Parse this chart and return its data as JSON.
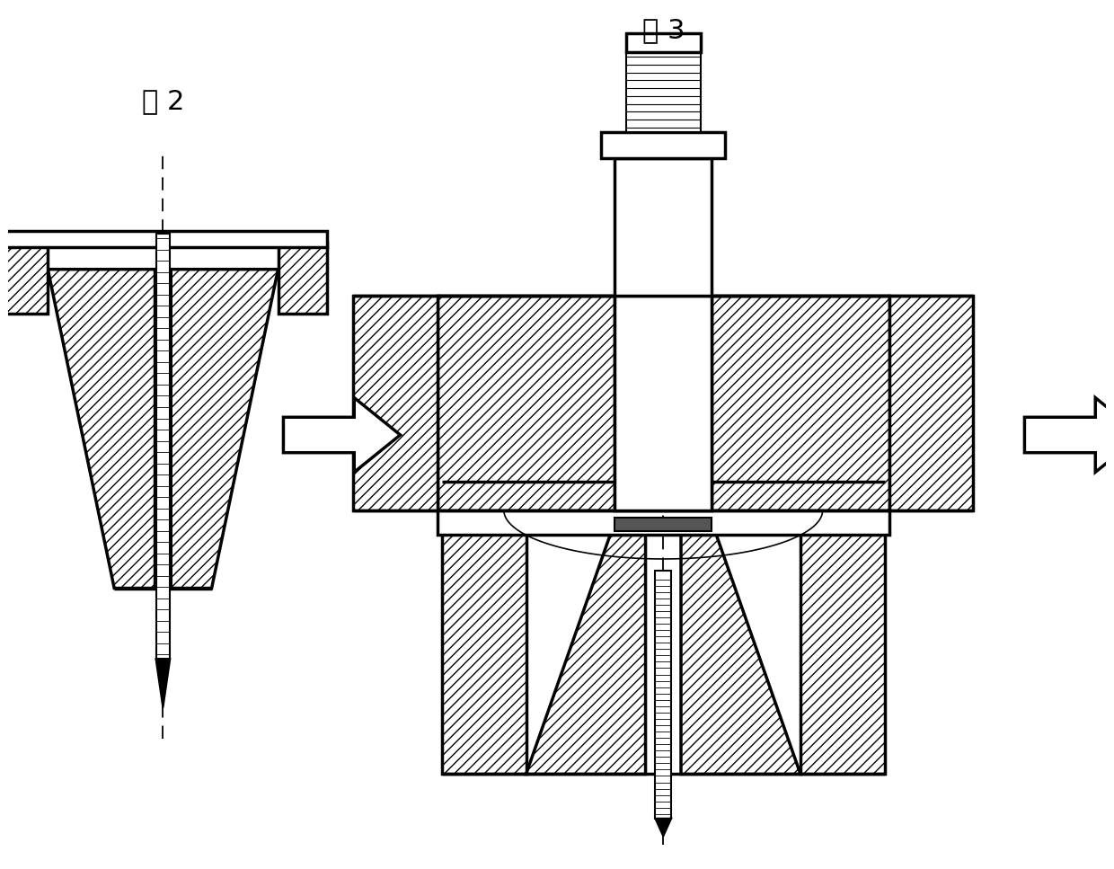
{
  "bg_color": "#ffffff",
  "line_color": "#000000",
  "fig2_label": "图 2",
  "fig3_label": "图 3",
  "lw_main": 2.5,
  "lw_thin": 1.2,
  "hatch": "///",
  "font_size": 22
}
